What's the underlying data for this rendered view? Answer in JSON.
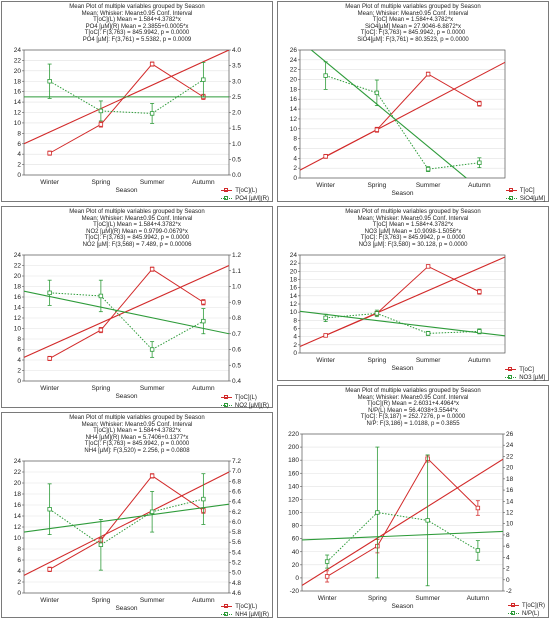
{
  "colors": {
    "red": "#d22a2a",
    "green": "#2e9b3a",
    "axis": "#555555",
    "grid": "#e2e2e2"
  },
  "chart_data": [
    {
      "type": "line",
      "header": [
        "Mean Plot of multiple variables grouped by  Season",
        "Mean; Whisker: Mean±0.95 Conf. Interval",
        "T[oC](L) Mean = 1.584+4.3782*x",
        "PO4 [µM](R) Mean = 2.3855+0.0005*x",
        "T[oC]:  F(3,763) = 845.9942, p = 0.0000",
        "PO4 [µM]:  F(3,761) = 5.5382, p = 0.0009"
      ],
      "categories": [
        "Winter",
        "Spring",
        "Summer",
        "Autumn"
      ],
      "xlabel": "Season",
      "ylim_left": [
        0,
        24
      ],
      "yticks_left": [
        0,
        2,
        4,
        6,
        8,
        10,
        12,
        14,
        16,
        18,
        20,
        22,
        24
      ],
      "ylim_right": [
        0,
        4
      ],
      "yticks_right": [
        "0.0",
        "0.5",
        "1.0",
        "1.5",
        "2.0",
        "2.5",
        "3.0",
        "3.5",
        "4.0"
      ],
      "series": [
        {
          "name": "T[oC](L)",
          "axis": "left",
          "color": "red",
          "style": "solid",
          "values": [
            4.2,
            9.7,
            21.3,
            15.0
          ],
          "errors": [
            0.4,
            0.5,
            0.4,
            0.5
          ],
          "fit": [
            6.0,
            24.0
          ]
        },
        {
          "name": "PO4 [µM](R)",
          "axis": "right",
          "color": "green",
          "style": "dotted",
          "values": [
            3.0,
            2.05,
            1.97,
            3.05
          ],
          "errors": [
            0.55,
            0.32,
            0.32,
            0.55
          ],
          "fit": [
            2.5,
            2.5
          ]
        }
      ]
    },
    {
      "type": "line",
      "header": [
        "Mean Plot of multiple variables grouped by  Season",
        "Mean; Whisker: Mean±0.95 Conf. Interval",
        "T[oC] Mean = 1.584+4.3782*x",
        "SiO4[µM] Mean = 27.9046-6.8872*x",
        "T[oC]:  F(3,763) = 845.9942, p = 0.0000",
        "SiO4[µM]:  F(3,761) = 80.3523, p = 0.0000"
      ],
      "categories": [
        "Winter",
        "Spring",
        "Summer",
        "Autumn"
      ],
      "xlabel": "Season",
      "ylim_left": [
        0,
        26
      ],
      "yticks_left": [
        0,
        2,
        4,
        6,
        8,
        10,
        12,
        14,
        16,
        18,
        20,
        22,
        24,
        26
      ],
      "series": [
        {
          "name": "T[oC]",
          "axis": "left",
          "color": "red",
          "style": "solid",
          "values": [
            4.4,
            9.8,
            21.1,
            15.1
          ],
          "errors": [
            0.4,
            0.5,
            0.4,
            0.5
          ],
          "fit": [
            1.6,
            23.5
          ]
        },
        {
          "name": "SiO4[µM]",
          "axis": "left",
          "color": "green",
          "style": "dotted",
          "values": [
            20.8,
            17.3,
            1.8,
            3.1
          ],
          "errors": [
            2.8,
            2.6,
            0.5,
            1.0
          ],
          "fit": [
            27.9,
            -6.5
          ]
        }
      ]
    },
    {
      "type": "line",
      "header": [
        "Mean Plot of multiple variables grouped by  Season",
        "Mean; Whisker: Mean±0.95 Conf. Interval",
        "T[oC](L) Mean = 1.584+4.3782*x",
        "NO2 [µM](R) Mean = 0.9799-0.0679*x",
        "T[oC]:  F(3,763) = 845.9942, p = 0.0000",
        "NO2 [µM]:  F(3,568) = 7.489, p = 0.00006"
      ],
      "categories": [
        "Winter",
        "Spring",
        "Summer",
        "Autumn"
      ],
      "xlabel": "Season",
      "ylim_left": [
        0,
        24
      ],
      "yticks_left": [
        0,
        2,
        4,
        6,
        8,
        10,
        12,
        14,
        16,
        18,
        20,
        22,
        24
      ],
      "ylim_right": [
        0.4,
        1.2
      ],
      "yticks_right": [
        "0.4",
        "0.5",
        "0.6",
        "0.7",
        "0.8",
        "0.9",
        "1.0",
        "1.1",
        "1.2"
      ],
      "series": [
        {
          "name": "T[oC](L)",
          "axis": "left",
          "color": "red",
          "style": "solid",
          "values": [
            4.3,
            9.7,
            21.3,
            15.0
          ],
          "errors": [
            0.4,
            0.5,
            0.4,
            0.5
          ],
          "fit": [
            4.5,
            22.0
          ]
        },
        {
          "name": "NO2 [µM](R)",
          "axis": "right",
          "color": "green",
          "style": "dotted",
          "values": [
            0.96,
            0.94,
            0.6,
            0.78
          ],
          "errors": [
            0.08,
            0.1,
            0.05,
            0.08
          ],
          "fit": [
            0.97,
            0.7
          ]
        }
      ]
    },
    {
      "type": "line",
      "header": [
        "Mean Plot of multiple variables grouped by  Season",
        "Mean; Whisker: Mean±0.95 Conf. Interval",
        "T[oC] Mean = 1.584+4.3782*x",
        "NO3 [µM] Mean = 10.9098-1.5056*x",
        "T[oC]:  F(3,763) = 845.9942, p = 0.0000",
        "NO3 [µM]:  F(3,580) = 30.128, p = 0.0000"
      ],
      "categories": [
        "Winter",
        "Spring",
        "Summer",
        "Autumn"
      ],
      "xlabel": "Season",
      "ylim_left": [
        0,
        24
      ],
      "yticks_left": [
        0,
        2,
        4,
        6,
        8,
        10,
        12,
        14,
        16,
        18,
        20,
        22,
        24
      ],
      "series": [
        {
          "name": "T[oC]",
          "axis": "left",
          "color": "red",
          "style": "solid",
          "values": [
            4.3,
            9.7,
            21.2,
            15.0
          ],
          "errors": [
            0.4,
            0.5,
            0.4,
            0.6
          ],
          "fit": [
            1.6,
            23.5
          ]
        },
        {
          "name": "NO3 [µM]",
          "axis": "left",
          "color": "green",
          "style": "dotted",
          "values": [
            8.6,
            9.7,
            4.8,
            5.3
          ],
          "errors": [
            0.9,
            0.8,
            0.5,
            0.6
          ],
          "fit": [
            10.2,
            4.2
          ]
        }
      ]
    },
    {
      "type": "line",
      "header": [
        "Mean Plot of multiple variables grouped by  Season",
        "Mean; Whisker: Mean±0.95 Conf. Interval",
        "T[oC](L) Mean = 1.584+4.3782*x",
        "NH4 [µM](R) Mean = 5.7406+0.1377*x",
        "T[oC]:  F(3,763) = 845.9942, p = 0.0000",
        "NH4 [µM]:  F(3,520) = 2.256, p = 0.0808"
      ],
      "categories": [
        "Winter",
        "Spring",
        "Summer",
        "Autumn"
      ],
      "xlabel": "Season",
      "ylim_left": [
        0,
        24
      ],
      "yticks_left": [
        0,
        2,
        4,
        6,
        8,
        10,
        12,
        14,
        16,
        18,
        20,
        22,
        24
      ],
      "ylim_right": [
        4.6,
        7.2
      ],
      "yticks_right": [
        "4.6",
        "4.8",
        "5.0",
        "5.2",
        "5.4",
        "5.6",
        "5.8",
        "6.0",
        "6.2",
        "6.4",
        "6.6",
        "6.8",
        "7.0",
        "7.2"
      ],
      "series": [
        {
          "name": "T[oC](L)",
          "axis": "left",
          "color": "red",
          "style": "solid",
          "values": [
            4.3,
            9.6,
            21.3,
            15.0
          ],
          "errors": [
            0.4,
            0.5,
            0.4,
            0.5
          ],
          "fit": [
            3.2,
            22.0
          ]
        },
        {
          "name": "NH4 [µM](R)",
          "axis": "right",
          "color": "green",
          "style": "dotted",
          "values": [
            6.25,
            5.55,
            6.2,
            6.45
          ],
          "errors": [
            0.5,
            0.5,
            0.4,
            0.5
          ],
          "fit": [
            5.8,
            6.35
          ]
        }
      ]
    },
    {
      "type": "line",
      "header": [
        "Mean Plot of multiple variables grouped by  Season",
        "Mean; Whisker: Mean±0.95 Conf. Interval",
        "T[oC](R) Mean = 2.6031+4.4964*x",
        "N/P(L) Mean = 56.4038+3.5544*x",
        "T[oC]:  F(3,187) = 252.7276, p = 0.0000",
        "N/P:  F(3,186) = 1.0188, p = 0.3855"
      ],
      "categories": [
        "Winter",
        "Spring",
        "Summer",
        "Autumn"
      ],
      "xlabel": "Season",
      "ylim_left": [
        -20,
        220
      ],
      "yticks_left": [
        -20,
        0,
        20,
        40,
        60,
        80,
        100,
        120,
        140,
        160,
        180,
        200,
        220
      ],
      "ylim_right": [
        -2,
        26
      ],
      "yticks_right": [
        "-2",
        "0",
        "2",
        "4",
        "6",
        "8",
        "10",
        "12",
        "14",
        "16",
        "18",
        "20",
        "22",
        "24",
        "26"
      ],
      "series": [
        {
          "name": "T[oC](R)",
          "axis": "right",
          "color": "red",
          "style": "solid",
          "values": [
            0.6,
            6.0,
            21.6,
            12.8
          ],
          "errors": [
            1.0,
            1.2,
            0.6,
            1.3
          ],
          "fit": [
            -1.0,
            21.5
          ]
        },
        {
          "name": "N/P(L)",
          "axis": "left",
          "color": "green",
          "style": "dotted",
          "values": [
            25,
            100,
            88,
            42
          ],
          "errors": [
            10,
            100,
            100,
            15
          ],
          "fit": [
            58,
            71
          ]
        }
      ]
    }
  ]
}
